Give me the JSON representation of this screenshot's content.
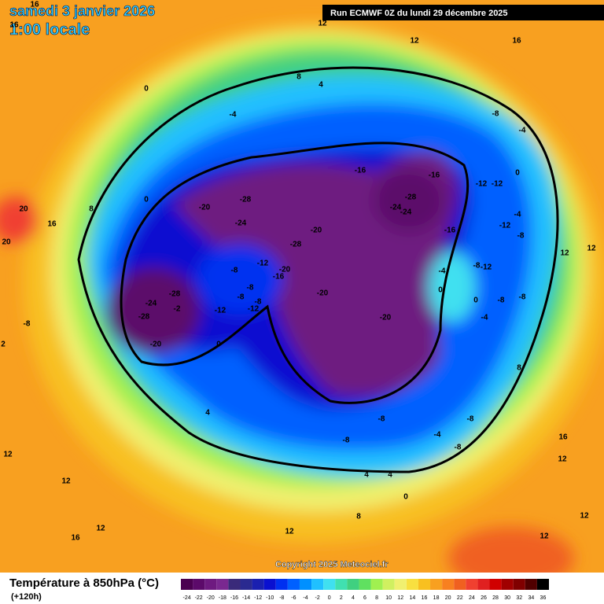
{
  "header": {
    "date": "samedi 3 janvier 2026",
    "time": "1:00 locale",
    "run": "Run ECMWF 0Z du lundi 29 décembre 2025"
  },
  "copyright": "Copyright 2025 Meteociel.fr",
  "legend": {
    "title": "Température à 850hPa (°C)",
    "lead": "(+120h)",
    "levels": [
      -24,
      -22,
      -20,
      -18,
      -16,
      -14,
      -12,
      -10,
      -8,
      -6,
      -4,
      -2,
      0,
      2,
      4,
      6,
      8,
      10,
      12,
      14,
      16,
      18,
      20,
      22,
      24,
      26,
      28,
      30,
      32,
      34,
      36
    ],
    "colors": [
      "#4b0050",
      "#5c0a6a",
      "#6e1a80",
      "#7a2890",
      "#3a2a7a",
      "#2a2a90",
      "#1a20b0",
      "#0a10d0",
      "#0030f0",
      "#0060ff",
      "#0090ff",
      "#20c0ff",
      "#40e0f0",
      "#40e0b0",
      "#40d080",
      "#60e060",
      "#a0f050",
      "#d0f060",
      "#f0f070",
      "#f8e040",
      "#f8c020",
      "#f8a020",
      "#f88020",
      "#f06020",
      "#f04030",
      "#e02020",
      "#d00000",
      "#a00000",
      "#800000",
      "#500000",
      "#000000"
    ]
  },
  "contour_labels": [
    0,
    -4,
    8,
    4,
    12,
    16,
    12,
    0,
    8,
    16,
    20,
    20,
    -20,
    -28,
    -24,
    -20,
    -28,
    -16,
    -16,
    -28,
    -24,
    -24,
    -16,
    -12,
    -12,
    -8,
    -4,
    0,
    -4,
    -12,
    -8,
    -28,
    -24,
    -28,
    -2,
    -20,
    -12,
    -8,
    -12,
    -8,
    -8,
    -8,
    -12,
    -16,
    -20,
    -20,
    -20,
    -4,
    0,
    -8,
    -12,
    0,
    -8,
    -8,
    -4,
    0,
    4,
    -8,
    -8,
    -4,
    -8,
    -8,
    8,
    16,
    12,
    12,
    4,
    4,
    0,
    8,
    12,
    12,
    16,
    12,
    -8,
    2,
    12,
    12,
    12,
    16,
    16,
    16,
    12
  ]
}
